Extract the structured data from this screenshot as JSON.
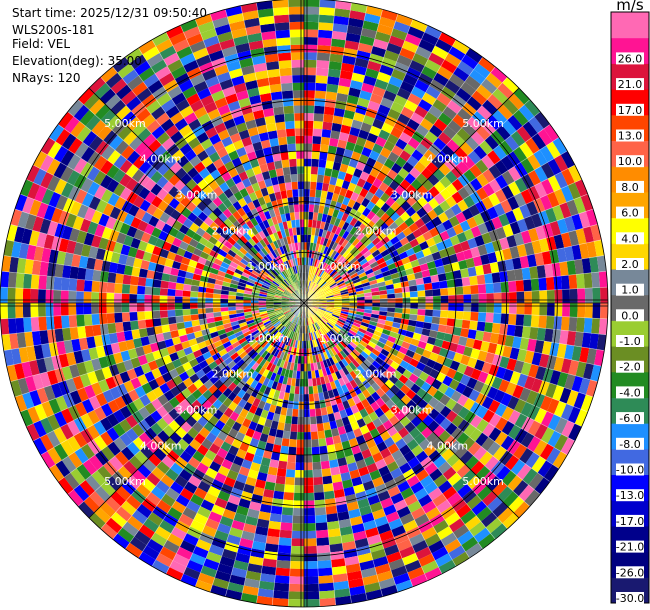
{
  "header": {
    "start_time": "Start time: 2025/12/31 09:50:40",
    "instrument": "WLS200s-181",
    "field": "Field: VEL",
    "elevation": "Elevation(deg): 35.00",
    "nrays": "NRays: 120"
  },
  "chart_data": {
    "type": "heatmap",
    "projection": "polar-ppi",
    "field": "VEL",
    "units": "m/s",
    "nrays": 120,
    "elevation_deg": 35.0,
    "range_max_km": 6.0,
    "range_rings_km": [
      1.0,
      2.0,
      3.0,
      4.0,
      5.0,
      6.0
    ],
    "range_ring_labels": [
      "1.00km",
      "2.00km",
      "3.00km",
      "4.00km",
      "5.00km"
    ],
    "grid": true,
    "colorbar": {
      "label": "m/s",
      "placement": "right",
      "levels": [
        -30.0,
        -26.0,
        -21.0,
        -17.0,
        -13.0,
        -10.0,
        -8.0,
        -6.0,
        -4.0,
        -2.0,
        -1.0,
        0.0,
        1.0,
        2.0,
        4.0,
        6.0,
        8.0,
        10.0,
        13.0,
        17.0,
        21.0,
        26.0
      ],
      "tick_labels": [
        "-30.0",
        "-26.0",
        "-21.0",
        "-17.0",
        "-13.0",
        "-10.0",
        "-8.0",
        "-6.0",
        "-4.0",
        "-2.0",
        "-1.0",
        "0.0",
        "1.0",
        "2.0",
        "4.0",
        "6.0",
        "8.0",
        "10.0",
        "13.0",
        "17.0",
        "21.0",
        "26.0"
      ],
      "colors": [
        "#191970",
        "#000080",
        "#00008b",
        "#0000cd",
        "#0000ff",
        "#4169e1",
        "#1e90ff",
        "#2e8b57",
        "#228b22",
        "#6b8e23",
        "#9acd32",
        "#696969",
        "#778899",
        "#ffd700",
        "#ffff00",
        "#ffa500",
        "#ff8c00",
        "#ff6347",
        "#ff4500",
        "#ff0000",
        "#dc143c",
        "#ff1493",
        "#ff69b4"
      ]
    }
  }
}
